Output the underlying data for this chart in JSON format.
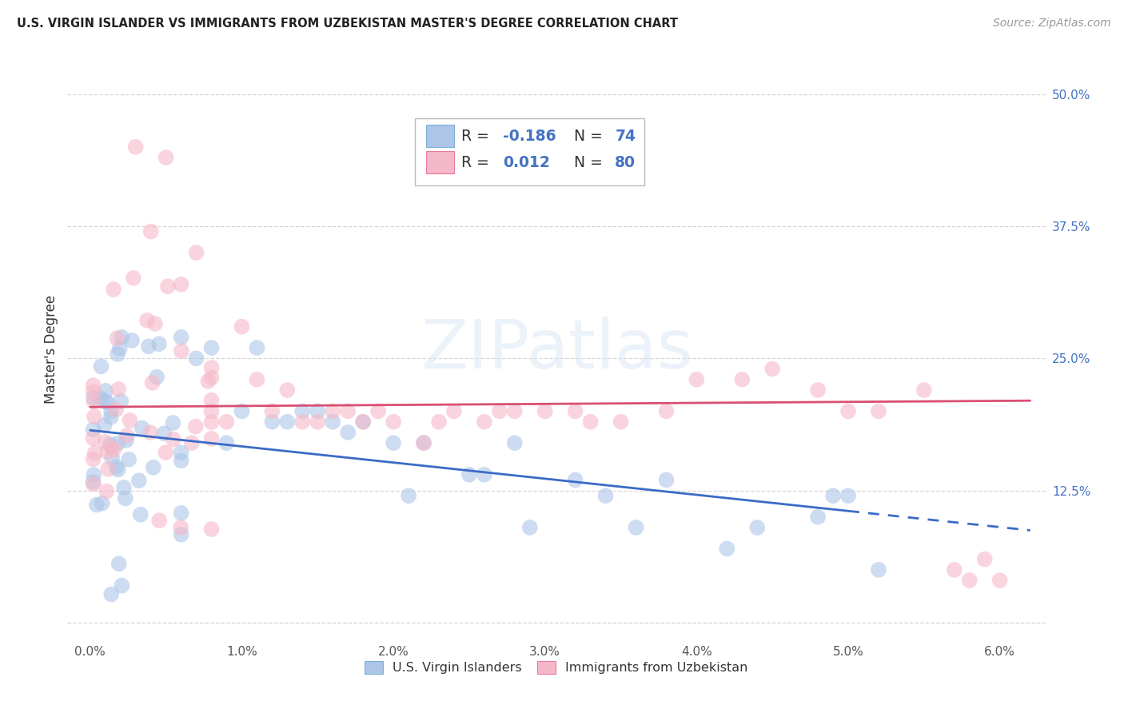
{
  "title": "U.S. VIRGIN ISLANDER VS IMMIGRANTS FROM UZBEKISTAN MASTER'S DEGREE CORRELATION CHART",
  "source": "Source: ZipAtlas.com",
  "ylabel": "Master's Degree",
  "legend_label1": "U.S. Virgin Islanders",
  "legend_label2": "Immigrants from Uzbekistan",
  "r1": "-0.186",
  "n1": "74",
  "r2": "0.012",
  "n2": "80",
  "color1_fill": "#adc6e8",
  "color1_edge": "#7aafd4",
  "color2_fill": "#f5b8c8",
  "color2_edge": "#e87a9a",
  "trendline1_color": "#3b6bc7",
  "trendline2_color": "#d94f72",
  "r_n_color": "#4472c4",
  "background_color": "#ffffff",
  "grid_color": "#cccccc",
  "xlim": [
    -0.0015,
    0.063
  ],
  "ylim": [
    -0.018,
    0.535
  ],
  "xticks": [
    0.0,
    0.01,
    0.02,
    0.03,
    0.04,
    0.05,
    0.06
  ],
  "yticks": [
    0.0,
    0.125,
    0.25,
    0.375,
    0.5
  ],
  "xtick_labels": [
    "0.0%",
    "1.0%",
    "2.0%",
    "3.0%",
    "4.0%",
    "5.0%",
    "6.0%"
  ],
  "ytick_labels": [
    "",
    "12.5%",
    "25.0%",
    "37.5%",
    "50.0%"
  ]
}
